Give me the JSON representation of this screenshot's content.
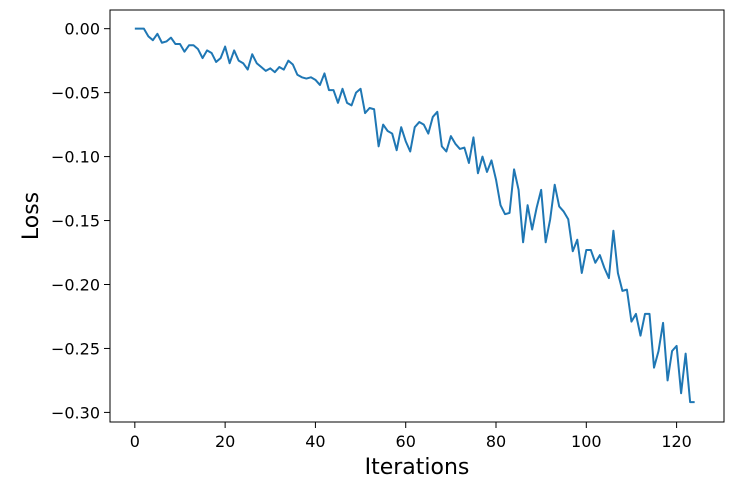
{
  "chart_data": {
    "type": "line",
    "xlabel": "Iterations",
    "ylabel": "Loss",
    "xlim": [
      -5.5,
      130.5
    ],
    "ylim": [
      -0.3075,
      0.0146
    ],
    "xticks": [
      0,
      20,
      40,
      60,
      80,
      100,
      120
    ],
    "xtick_labels": [
      "0",
      "20",
      "40",
      "60",
      "80",
      "100",
      "120"
    ],
    "yticks": [
      0.0,
      -0.05,
      -0.1,
      -0.15,
      -0.2,
      -0.25,
      -0.3
    ],
    "ytick_labels": [
      "0.00",
      "−0.05",
      "−0.10",
      "−0.15",
      "−0.20",
      "−0.25",
      "−0.30"
    ],
    "grid": false,
    "series": [
      {
        "color": "#1f77b4",
        "x_start": 0,
        "x_step": 1,
        "y": [
          0.0,
          0.0,
          0.0,
          -0.006,
          -0.009,
          -0.004,
          -0.011,
          -0.01,
          -0.007,
          -0.012,
          -0.012,
          -0.018,
          -0.013,
          -0.013,
          -0.016,
          -0.023,
          -0.017,
          -0.019,
          -0.026,
          -0.023,
          -0.014,
          -0.027,
          -0.017,
          -0.025,
          -0.027,
          -0.032,
          -0.02,
          -0.027,
          -0.03,
          -0.033,
          -0.031,
          -0.034,
          -0.03,
          -0.032,
          -0.025,
          -0.028,
          -0.036,
          -0.038,
          -0.039,
          -0.038,
          -0.04,
          -0.044,
          -0.035,
          -0.048,
          -0.048,
          -0.058,
          -0.047,
          -0.058,
          -0.06,
          -0.05,
          -0.047,
          -0.066,
          -0.062,
          -0.063,
          -0.092,
          -0.075,
          -0.08,
          -0.082,
          -0.095,
          -0.077,
          -0.088,
          -0.096,
          -0.077,
          -0.073,
          -0.075,
          -0.082,
          -0.069,
          -0.065,
          -0.092,
          -0.096,
          -0.084,
          -0.09,
          -0.094,
          -0.093,
          -0.105,
          -0.085,
          -0.113,
          -0.1,
          -0.112,
          -0.103,
          -0.118,
          -0.138,
          -0.145,
          -0.144,
          -0.11,
          -0.126,
          -0.167,
          -0.138,
          -0.157,
          -0.14,
          -0.126,
          -0.167,
          -0.149,
          -0.122,
          -0.139,
          -0.143,
          -0.149,
          -0.174,
          -0.165,
          -0.191,
          -0.173,
          -0.173,
          -0.183,
          -0.177,
          -0.187,
          -0.195,
          -0.158,
          -0.191,
          -0.205,
          -0.204,
          -0.229,
          -0.223,
          -0.24,
          -0.223,
          -0.223,
          -0.265,
          -0.252,
          -0.23,
          -0.275,
          -0.252,
          -0.248,
          -0.285,
          -0.254,
          -0.292,
          -0.292
        ]
      }
    ]
  }
}
